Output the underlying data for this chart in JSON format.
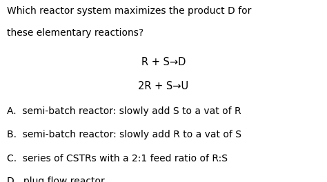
{
  "background_color": "#ffffff",
  "question_line1": "Which reactor system maximizes the product D for",
  "question_line2": "these elementary reactions?",
  "reaction1_left": "R + S",
  "reaction1_right": "D",
  "reaction2_left": "2R + S",
  "reaction2_right": "U",
  "choices": [
    "A.  semi-batch reactor: slowly add S to a vat of R",
    "B.  semi-batch reactor: slowly add R to a vat of S",
    "C.  series of CSTRs with a 2:1 feed ratio of R:S",
    "D.  plug flow reactor"
  ],
  "q_fontsize": 10.0,
  "r_fontsize": 10.5,
  "c_fontsize": 10.0,
  "figsize": [
    4.74,
    2.65
  ],
  "dpi": 100,
  "arrow_color": "#000000",
  "text_color": "#000000"
}
